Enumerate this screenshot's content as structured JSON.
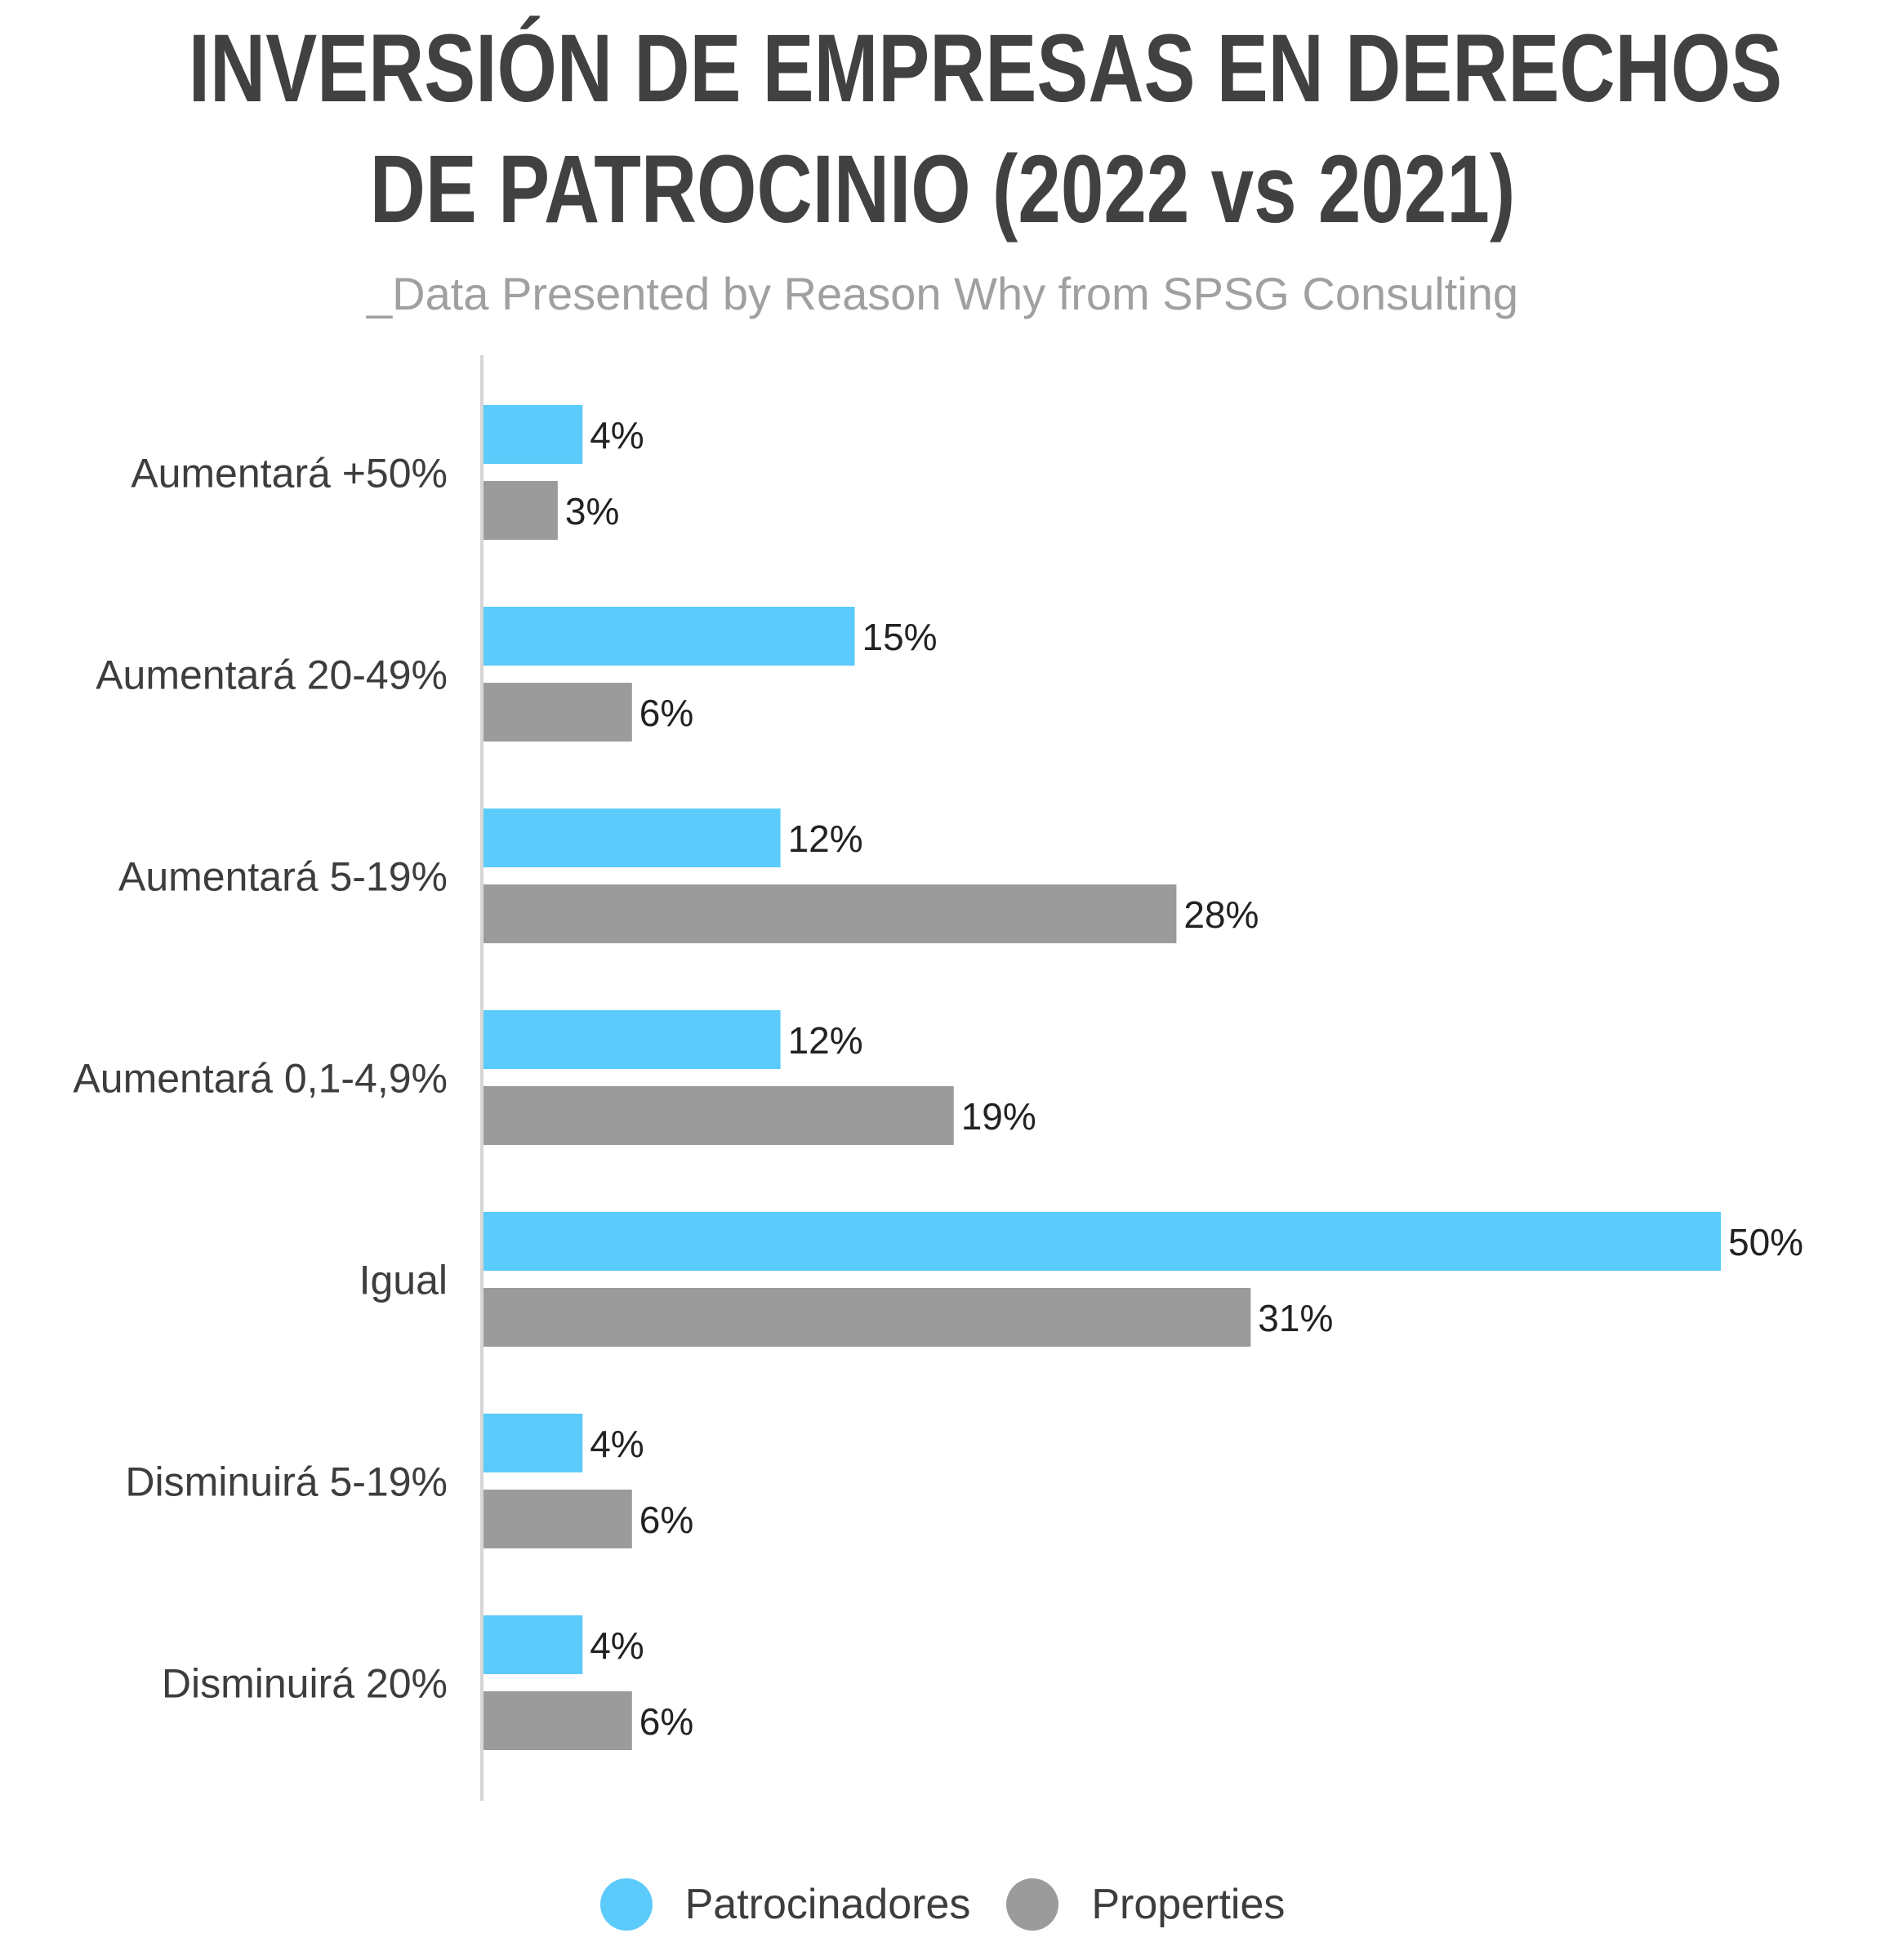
{
  "chart_data": {
    "type": "bar",
    "orientation": "horizontal",
    "title_lines": [
      "INVERSIÓN DE EMPRESAS EN DERECHOS",
      "DE PATROCINIO (2022 vs 2021)"
    ],
    "subtitle": "_Data Presented by Reason Why from SPSG Consulting",
    "categories": [
      "Aumentará +50%",
      "Aumentará 20-49%",
      "Aumentará 5-19%",
      "Aumentará 0,1-4,9%",
      "Igual",
      "Disminuirá 5-19%",
      "Disminuirá 20%"
    ],
    "series": [
      {
        "name": "Patrocinadores",
        "color": "#5bcbfb",
        "values": [
          4,
          15,
          12,
          12,
          50,
          4,
          4
        ],
        "labels": [
          "4%",
          "15%",
          "12%",
          "12%",
          "50%",
          "4%",
          "4%"
        ]
      },
      {
        "name": "Properties",
        "color": "#9b9b9b",
        "values": [
          3,
          6,
          28,
          19,
          31,
          6,
          6
        ],
        "labels": [
          "3%",
          "6%",
          "28%",
          "19%",
          "31%",
          "6%",
          "6%"
        ]
      }
    ],
    "xlim": [
      0,
      50
    ],
    "grid": false,
    "legend_position": "bottom"
  }
}
